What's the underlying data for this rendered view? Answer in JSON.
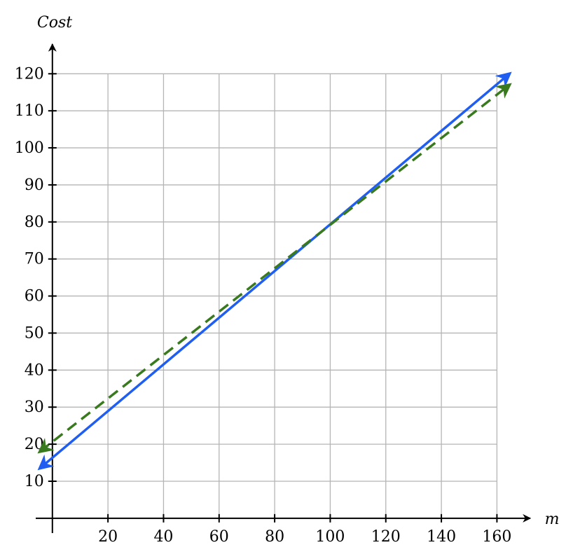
{
  "chart_data": {
    "type": "line",
    "x_label": "m",
    "y_label": "Cost",
    "x": [
      -4.5,
      164.5
    ],
    "series": [
      {
        "color": "#1f5ef0",
        "dash": false,
        "values": [
          13.5,
          120
        ]
      },
      {
        "color": "#3a7a1e",
        "dash": true,
        "values": [
          18,
          117
        ]
      }
    ],
    "xlim": [
      -6,
      172
    ],
    "ylim": [
      -4,
      128
    ],
    "xticks": [
      20,
      40,
      60,
      80,
      100,
      120,
      140,
      160
    ],
    "yticks": [
      10,
      20,
      30,
      40,
      50,
      60,
      70,
      80,
      90,
      100,
      110,
      120
    ],
    "grid": true
  }
}
